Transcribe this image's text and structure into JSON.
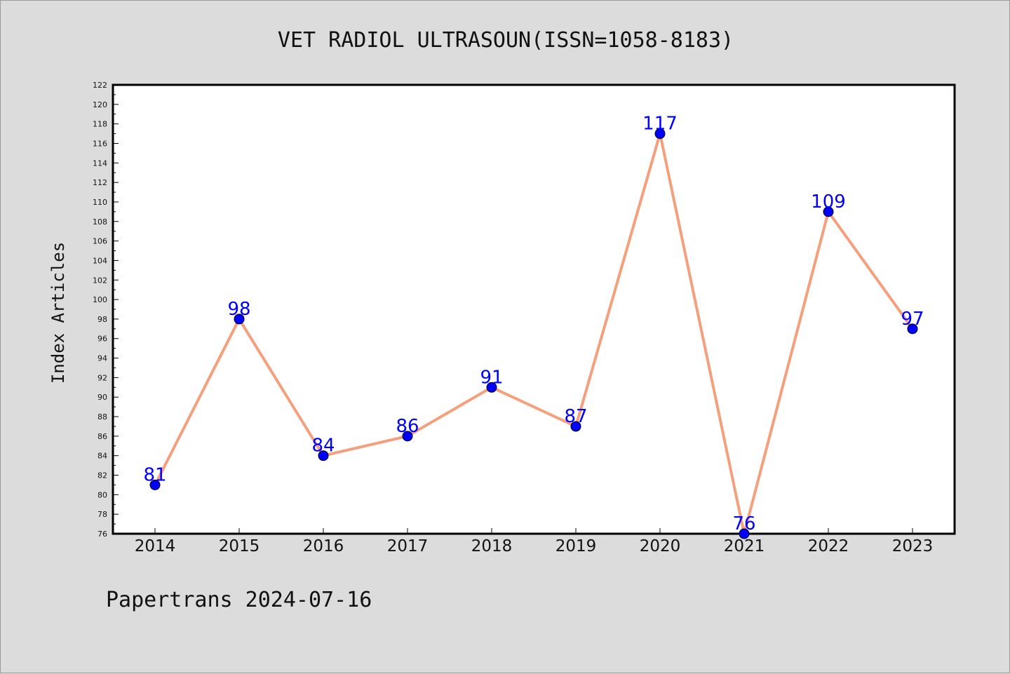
{
  "title": "VET RADIOL ULTRASOUN(ISSN=1058-8183)",
  "footer": "Papertrans 2024-07-16",
  "colors": {
    "background": "#dcdcdc",
    "plot_background": "#ffffff",
    "line": "#f4a07c",
    "marker": "#0000ff",
    "data_label": "#0000ff"
  },
  "chart_data": {
    "type": "line",
    "x": [
      "2014",
      "2015",
      "2016",
      "2017",
      "2018",
      "2019",
      "2020",
      "2021",
      "2022",
      "2023"
    ],
    "series": [
      {
        "values": [
          81,
          98,
          84,
          86,
          91,
          87,
          117,
          76,
          109,
          97
        ],
        "labels": [
          "81",
          "98",
          "84",
          "86",
          "91",
          "87",
          "117",
          "76",
          "109",
          "97"
        ]
      }
    ],
    "xlabel": "",
    "ylabel": "Index Articles",
    "ylim": [
      76,
      122
    ],
    "yticks": [
      "76",
      "78",
      "80",
      "82",
      "84",
      "86",
      "88",
      "90",
      "92",
      "94",
      "96",
      "98",
      "100",
      "102",
      "104",
      "106",
      "108",
      "110",
      "112",
      "114",
      "116",
      "118",
      "120",
      "122"
    ],
    "grid": false,
    "legend": "none"
  }
}
